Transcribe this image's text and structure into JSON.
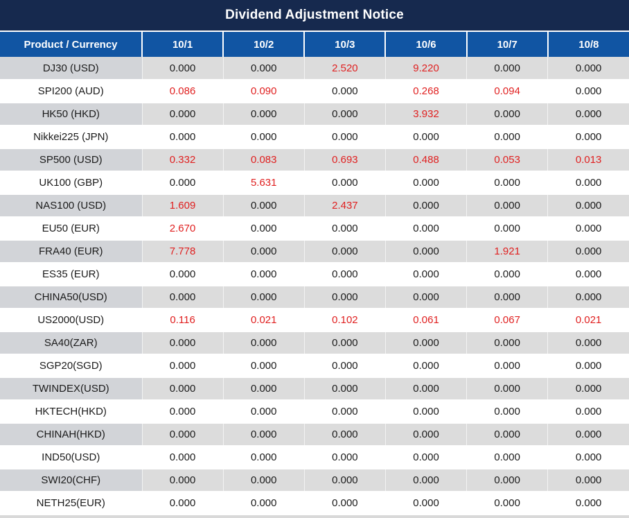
{
  "chart_data": {
    "type": "table",
    "title": "Dividend Adjustment Notice",
    "columns": [
      "Product / Currency",
      "10/1",
      "10/2",
      "10/3",
      "10/6",
      "10/7",
      "10/8"
    ],
    "rows": [
      [
        "DJ30 (USD)",
        "0.000",
        "0.000",
        "2.520",
        "9.220",
        "0.000",
        "0.000"
      ],
      [
        "SPI200 (AUD)",
        "0.086",
        "0.090",
        "0.000",
        "0.268",
        "0.094",
        "0.000"
      ],
      [
        "HK50 (HKD)",
        "0.000",
        "0.000",
        "0.000",
        "3.932",
        "0.000",
        "0.000"
      ],
      [
        "Nikkei225 (JPN)",
        "0.000",
        "0.000",
        "0.000",
        "0.000",
        "0.000",
        "0.000"
      ],
      [
        "SP500 (USD)",
        "0.332",
        "0.083",
        "0.693",
        "0.488",
        "0.053",
        "0.013"
      ],
      [
        "UK100 (GBP)",
        "0.000",
        "5.631",
        "0.000",
        "0.000",
        "0.000",
        "0.000"
      ],
      [
        "NAS100 (USD)",
        "1.609",
        "0.000",
        "2.437",
        "0.000",
        "0.000",
        "0.000"
      ],
      [
        "EU50 (EUR)",
        "2.670",
        "0.000",
        "0.000",
        "0.000",
        "0.000",
        "0.000"
      ],
      [
        "FRA40 (EUR)",
        "7.778",
        "0.000",
        "0.000",
        "0.000",
        "1.921",
        "0.000"
      ],
      [
        "ES35 (EUR)",
        "0.000",
        "0.000",
        "0.000",
        "0.000",
        "0.000",
        "0.000"
      ],
      [
        "CHINA50(USD)",
        "0.000",
        "0.000",
        "0.000",
        "0.000",
        "0.000",
        "0.000"
      ],
      [
        "US2000(USD)",
        "0.116",
        "0.021",
        "0.102",
        "0.061",
        "0.067",
        "0.021"
      ],
      [
        "SA40(ZAR)",
        "0.000",
        "0.000",
        "0.000",
        "0.000",
        "0.000",
        "0.000"
      ],
      [
        "SGP20(SGD)",
        "0.000",
        "0.000",
        "0.000",
        "0.000",
        "0.000",
        "0.000"
      ],
      [
        "TWINDEX(USD)",
        "0.000",
        "0.000",
        "0.000",
        "0.000",
        "0.000",
        "0.000"
      ],
      [
        "HKTECH(HKD)",
        "0.000",
        "0.000",
        "0.000",
        "0.000",
        "0.000",
        "0.000"
      ],
      [
        "CHINAH(HKD)",
        "0.000",
        "0.000",
        "0.000",
        "0.000",
        "0.000",
        "0.000"
      ],
      [
        "IND50(USD)",
        "0.000",
        "0.000",
        "0.000",
        "0.000",
        "0.000",
        "0.000"
      ],
      [
        "SWI20(CHF)",
        "0.000",
        "0.000",
        "0.000",
        "0.000",
        "0.000",
        "0.000"
      ],
      [
        "NETH25(EUR)",
        "0.000",
        "0.000",
        "0.000",
        "0.000",
        "0.000",
        "0.000"
      ]
    ],
    "legend_note": "non-zero adjustment values rendered in red"
  },
  "colors": {
    "title_bar_bg": "#16294E",
    "header_bg": "#1155A3",
    "row_alt_bg": "#DCDCDC",
    "row_alt_label_bg": "#D2D4D8",
    "highlight_red": "#E01F1F",
    "text": "#1A1A1A"
  }
}
